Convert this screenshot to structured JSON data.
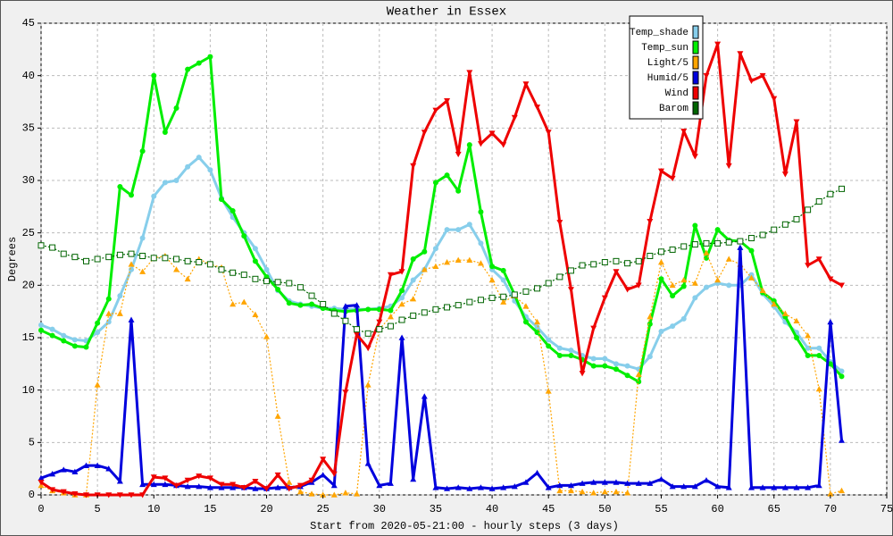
{
  "chart_data": {
    "type": "line",
    "title": "Weather in Essex",
    "x_label": "Start from 2020-05-21:00 - hourly steps (3 days)",
    "y_label": "Degrees",
    "x": [
      0,
      1,
      2,
      3,
      4,
      5,
      6,
      7,
      8,
      9,
      10,
      11,
      12,
      13,
      14,
      15,
      16,
      17,
      18,
      19,
      20,
      21,
      22,
      23,
      24,
      25,
      26,
      27,
      28,
      29,
      30,
      31,
      32,
      33,
      34,
      35,
      36,
      37,
      38,
      39,
      40,
      41,
      42,
      43,
      44,
      45,
      46,
      47,
      48,
      49,
      50,
      51,
      52,
      53,
      54,
      55,
      56,
      57,
      58,
      59,
      60,
      61,
      62,
      63,
      64,
      65,
      66,
      67,
      68,
      69,
      70,
      71
    ],
    "xlim": [
      0,
      75
    ],
    "xticks": [
      0,
      5,
      10,
      15,
      20,
      25,
      30,
      35,
      40,
      45,
      50,
      55,
      60,
      65,
      70,
      75
    ],
    "ylim": [
      0,
      45
    ],
    "yticks": [
      0,
      5,
      10,
      15,
      20,
      25,
      30,
      35,
      40,
      45
    ],
    "grid": true,
    "legend": "top-right",
    "series": [
      {
        "name": "Temp_shade",
        "color": "#87ceeb",
        "marker": "circle",
        "dotted": false,
        "values": [
          16.2,
          15.8,
          15.2,
          14.8,
          14.7,
          15.5,
          16.5,
          19.0,
          21.5,
          24.5,
          28.5,
          29.8,
          30,
          31.3,
          32.2,
          31,
          28.3,
          26.5,
          25,
          23.5,
          21.5,
          19.5,
          18.5,
          18.2,
          18,
          17.8,
          17.8,
          17.7,
          17.7,
          17.7,
          17.8,
          18,
          18.8,
          20.5,
          21.5,
          23.5,
          25.3,
          25.3,
          25.8,
          24,
          21.5,
          20.5,
          18.5,
          17,
          16,
          14.8,
          14,
          13.8,
          13.3,
          13,
          13,
          12.5,
          12.3,
          12,
          13.2,
          15.6,
          16.1,
          16.8,
          18.8,
          19.8,
          20.2,
          20,
          20,
          21,
          19.2,
          18,
          16.5,
          15.5,
          14,
          14,
          12.7,
          11.8
        ]
      },
      {
        "name": "Temp_sun",
        "color": "#00ee00",
        "marker": "circle",
        "dotted": false,
        "values": [
          15.7,
          15.2,
          14.7,
          14.2,
          14.1,
          16.4,
          18.7,
          29.4,
          28.6,
          32.8,
          40,
          34.6,
          36.9,
          40.6,
          41.2,
          41.8,
          28.2,
          27.1,
          24.7,
          22.3,
          20.8,
          19.6,
          18.3,
          18.1,
          18.2,
          17.8,
          17.6,
          17.5,
          17.6,
          17.7,
          17.7,
          17.6,
          19.5,
          22.5,
          23.2,
          29.8,
          30.5,
          29,
          33.4,
          27,
          21.8,
          21.4,
          19.1,
          16.5,
          15.5,
          14.2,
          13.3,
          13.3,
          12.9,
          12.3,
          12.3,
          12,
          11.4,
          10.8,
          16.3,
          20.6,
          19,
          19.9,
          25.7,
          22.6,
          25.3,
          24.3,
          24.2,
          23.3,
          19.3,
          18.5,
          17,
          15,
          13.3,
          13.3,
          12.5,
          11.3
        ]
      },
      {
        "name": "Light/5",
        "color": "#ffa500",
        "marker": "triangle",
        "dotted": true,
        "values": [
          0.9,
          0.4,
          0.2,
          0,
          0,
          10.5,
          17.3,
          17.3,
          22,
          21.3,
          22.6,
          22.8,
          21.5,
          20.6,
          22.5,
          22,
          21.7,
          18.2,
          18.4,
          17.2,
          15.1,
          7.5,
          1.2,
          0.3,
          0.1,
          0,
          0,
          0.2,
          0.1,
          10.5,
          15.8,
          17,
          18.2,
          18.7,
          21.5,
          21.8,
          22.2,
          22.4,
          22.4,
          22.1,
          20.5,
          18.4,
          19,
          18,
          16.5,
          9.9,
          0.4,
          0.4,
          0.3,
          0.2,
          0.3,
          0.3,
          0.2,
          11.5,
          17,
          22.2,
          20,
          20.5,
          20.2,
          23.1,
          20.5,
          22.5,
          22,
          20.7,
          19.5,
          18.2,
          17.3,
          16.6,
          15.2,
          10.1,
          0.1,
          0.4
        ]
      },
      {
        "name": "Humid/5",
        "color": "#0000dd",
        "marker": "triangle",
        "dotted": false,
        "values": [
          1.6,
          2,
          2.4,
          2.2,
          2.8,
          2.8,
          2.5,
          1.3,
          16.7,
          1,
          1,
          1,
          0.9,
          0.8,
          0.8,
          0.7,
          0.7,
          0.7,
          0.7,
          0.6,
          0.6,
          0.7,
          0.7,
          0.8,
          1.2,
          1.9,
          0.9,
          18,
          18.1,
          3,
          0.9,
          1.1,
          15,
          1.5,
          9.4,
          0.7,
          0.6,
          0.7,
          0.6,
          0.7,
          0.6,
          0.7,
          0.8,
          1.2,
          2.1,
          0.7,
          0.9,
          0.9,
          1.1,
          1.2,
          1.2,
          1.2,
          1.1,
          1.1,
          1.1,
          1.5,
          0.8,
          0.8,
          0.8,
          1.4,
          0.8,
          0.7,
          23.6,
          0.7,
          0.7,
          0.7,
          0.7,
          0.7,
          0.7,
          0.9,
          16.5,
          5.2
        ]
      },
      {
        "name": "Wind",
        "color": "#ee0000",
        "marker": "down-triangle",
        "dotted": false,
        "values": [
          1.2,
          0.5,
          0.3,
          0.1,
          0,
          0,
          0,
          0,
          0,
          0,
          1.7,
          1.6,
          0.9,
          1.4,
          1.8,
          1.6,
          1,
          1,
          0.7,
          1.3,
          0.6,
          1.9,
          0.6,
          0.9,
          1.4,
          3.4,
          2,
          9.8,
          15.3,
          14,
          16.5,
          21,
          21.3,
          31.4,
          34.6,
          36.7,
          37.6,
          32.5,
          40.3,
          33.5,
          34.5,
          33.4,
          36,
          39.2,
          37,
          34.6,
          26,
          19.6,
          11.6,
          15.9,
          18.8,
          21.3,
          19.6,
          20,
          26.1,
          30.9,
          30.2,
          34.7,
          32.3,
          40,
          43,
          31.4,
          42.1,
          39.5,
          40,
          37.8,
          30.6,
          35.6,
          21.9,
          22.5,
          20.6,
          20
        ]
      },
      {
        "name": "Barom",
        "color": "#006400",
        "marker": "open-square",
        "dotted": true,
        "values": [
          23.8,
          23.6,
          23,
          22.7,
          22.3,
          22.5,
          22.7,
          22.9,
          23,
          22.8,
          22.6,
          22.6,
          22.5,
          22.3,
          22.2,
          22,
          21.5,
          21.2,
          21,
          20.6,
          20.4,
          20.3,
          20.2,
          19.8,
          19,
          18.2,
          17.3,
          16.6,
          15.8,
          15.4,
          15.8,
          16.1,
          16.7,
          17.1,
          17.4,
          17.7,
          17.9,
          18.1,
          18.4,
          18.6,
          18.8,
          18.9,
          19.1,
          19.4,
          19.7,
          20.2,
          20.8,
          21.4,
          21.9,
          22,
          22.2,
          22.3,
          22.1,
          22.3,
          22.8,
          23.2,
          23.4,
          23.7,
          23.9,
          24,
          24,
          24.1,
          24.2,
          24.5,
          24.8,
          25.3,
          25.8,
          26.3,
          27.2,
          28,
          28.7,
          29.2
        ]
      }
    ]
  }
}
